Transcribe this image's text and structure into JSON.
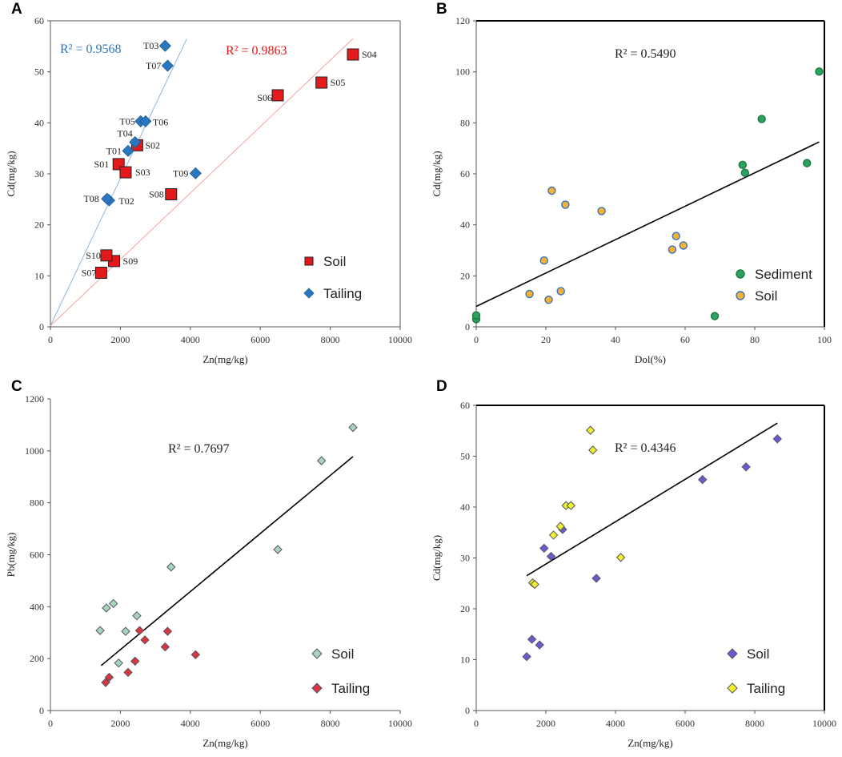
{
  "chart_data": [
    {
      "type": "scatter",
      "panel": "A",
      "xlabel": "Zn(mg/kg)",
      "ylabel": "Cd(mg/kg)",
      "xlim": [
        0,
        10000
      ],
      "ylim": [
        0,
        60
      ],
      "xticks": [
        0,
        2000,
        4000,
        6000,
        8000,
        10000
      ],
      "yticks": [
        0,
        10,
        20,
        30,
        40,
        50,
        60
      ],
      "series": [
        {
          "name": "Soil",
          "marker": "square",
          "color": "#e3191c",
          "points": [
            {
              "label": "S01",
              "x": 1950,
              "y": 31.9
            },
            {
              "label": "S02",
              "x": 2480,
              "y": 35.6
            },
            {
              "label": "S03",
              "x": 2150,
              "y": 30.3
            },
            {
              "label": "S04",
              "x": 8650,
              "y": 53.4
            },
            {
              "label": "S05",
              "x": 7750,
              "y": 47.9
            },
            {
              "label": "S06",
              "x": 6500,
              "y": 45.4
            },
            {
              "label": "S07",
              "x": 1450,
              "y": 10.6
            },
            {
              "label": "S08",
              "x": 3450,
              "y": 26.0
            },
            {
              "label": "S09",
              "x": 1820,
              "y": 12.9
            },
            {
              "label": "S10",
              "x": 1600,
              "y": 14.0
            }
          ]
        },
        {
          "name": "Tailing",
          "marker": "diamond",
          "color": "#2a77bf",
          "points": [
            {
              "label": "T01",
              "x": 2220,
              "y": 34.5
            },
            {
              "label": "T02",
              "x": 1680,
              "y": 24.8
            },
            {
              "label": "T03",
              "x": 3280,
              "y": 55.1
            },
            {
              "label": "T04",
              "x": 2420,
              "y": 36.2
            },
            {
              "label": "T05",
              "x": 2580,
              "y": 40.3
            },
            {
              "label": "T06",
              "x": 2720,
              "y": 40.3
            },
            {
              "label": "T07",
              "x": 3350,
              "y": 51.2
            },
            {
              "label": "T08",
              "x": 1620,
              "y": 25.1
            },
            {
              "label": "T09",
              "x": 4150,
              "y": 30.1
            }
          ]
        }
      ],
      "trendlines": [
        {
          "name": "Soil fit",
          "r2": "R² = 0.9863",
          "color": "#f4a3a3",
          "x0": 0,
          "y0": 0.2,
          "x1": 8650,
          "y1": 56.5
        },
        {
          "name": "Tailing fit",
          "r2": "R² = 0.9568",
          "color": "#8fb3e0",
          "x0": 0,
          "y0": 0.2,
          "x1": 3900,
          "y1": 56.5
        }
      ]
    },
    {
      "type": "scatter",
      "panel": "B",
      "xlabel": "Dol(%)",
      "ylabel": "Cd(mg/kg)",
      "xlim": [
        0,
        100
      ],
      "ylim": [
        0,
        120
      ],
      "xticks": [
        0,
        20,
        40,
        60,
        80,
        100
      ],
      "yticks": [
        0,
        20,
        40,
        60,
        80,
        100,
        120
      ],
      "r2": "R² = 0.5490",
      "trendline": {
        "x0": 0,
        "y0": 8,
        "x1": 98.5,
        "y1": 72.5
      },
      "series": [
        {
          "name": "Sediment",
          "marker": "circle",
          "color": "#2ca25f",
          "points": [
            {
              "x": 0,
              "y": 3
            },
            {
              "x": 0,
              "y": 4.5
            },
            {
              "x": 68.5,
              "y": 4.2
            },
            {
              "x": 76.5,
              "y": 63.5
            },
            {
              "x": 77.2,
              "y": 60.4
            },
            {
              "x": 82,
              "y": 81.5
            },
            {
              "x": 95,
              "y": 64.2
            },
            {
              "x": 98.5,
              "y": 100.1
            }
          ]
        },
        {
          "name": "Soil",
          "marker": "circle",
          "color": "#f5b335",
          "points": [
            {
              "x": 15.3,
              "y": 12.9
            },
            {
              "x": 19.5,
              "y": 26.0
            },
            {
              "x": 20.8,
              "y": 10.6
            },
            {
              "x": 21.7,
              "y": 53.4
            },
            {
              "x": 24.3,
              "y": 14.0
            },
            {
              "x": 25.6,
              "y": 47.9
            },
            {
              "x": 36,
              "y": 45.4
            },
            {
              "x": 56.3,
              "y": 30.3
            },
            {
              "x": 57.4,
              "y": 35.6
            },
            {
              "x": 59.5,
              "y": 31.9
            }
          ]
        }
      ]
    },
    {
      "type": "scatter",
      "panel": "C",
      "xlabel": "Zn(mg/kg)",
      "ylabel": "Pb(mg/kg)",
      "xlim": [
        0,
        10000
      ],
      "ylim": [
        0,
        1200
      ],
      "xticks": [
        0,
        2000,
        4000,
        6000,
        8000,
        10000
      ],
      "yticks": [
        0,
        200,
        400,
        600,
        800,
        1000,
        1200
      ],
      "r2": "R² = 0.7697",
      "trendline": {
        "x0": 1450,
        "y0": 173,
        "x1": 8650,
        "y1": 978
      },
      "series": [
        {
          "name": "Soil",
          "marker": "diamond",
          "color": "#a8d5ba",
          "points": [
            {
              "x": 1420,
              "y": 308
            },
            {
              "x": 1600,
              "y": 395
            },
            {
              "x": 1800,
              "y": 412
            },
            {
              "x": 1950,
              "y": 183
            },
            {
              "x": 2150,
              "y": 305
            },
            {
              "x": 2470,
              "y": 365
            },
            {
              "x": 3450,
              "y": 553
            },
            {
              "x": 6500,
              "y": 620
            },
            {
              "x": 7750,
              "y": 962
            },
            {
              "x": 8650,
              "y": 1090
            }
          ]
        },
        {
          "name": "Tailing",
          "marker": "diamond",
          "color": "#d9363e",
          "points": [
            {
              "x": 1580,
              "y": 108
            },
            {
              "x": 1680,
              "y": 128
            },
            {
              "x": 2220,
              "y": 147
            },
            {
              "x": 2420,
              "y": 190
            },
            {
              "x": 2550,
              "y": 308
            },
            {
              "x": 2700,
              "y": 272
            },
            {
              "x": 3280,
              "y": 245
            },
            {
              "x": 3350,
              "y": 305
            },
            {
              "x": 4150,
              "y": 215
            }
          ]
        }
      ]
    },
    {
      "type": "scatter",
      "panel": "D",
      "xlabel": "Zn(mg/kg)",
      "ylabel": "Cd(mg/kg)",
      "xlim": [
        0,
        10000
      ],
      "ylim": [
        0,
        60
      ],
      "xticks": [
        0,
        2000,
        4000,
        6000,
        8000,
        10000
      ],
      "yticks": [
        0,
        10,
        20,
        30,
        40,
        50,
        60
      ],
      "r2": "R² = 0.4346",
      "trendline": {
        "x0": 1450,
        "y0": 26.5,
        "x1": 8650,
        "y1": 56.5
      },
      "series": [
        {
          "name": "Soil",
          "marker": "diamond",
          "color": "#6a5acd",
          "points": [
            {
              "x": 1450,
              "y": 10.6
            },
            {
              "x": 1600,
              "y": 14.0
            },
            {
              "x": 1820,
              "y": 12.9
            },
            {
              "x": 1950,
              "y": 31.9
            },
            {
              "x": 2150,
              "y": 30.3
            },
            {
              "x": 2480,
              "y": 35.6
            },
            {
              "x": 3450,
              "y": 26.0
            },
            {
              "x": 6500,
              "y": 45.4
            },
            {
              "x": 7750,
              "y": 47.9
            },
            {
              "x": 8650,
              "y": 53.4
            }
          ]
        },
        {
          "name": "Tailing",
          "marker": "diamond",
          "color": "#f2f02c",
          "points": [
            {
              "x": 1620,
              "y": 25.1
            },
            {
              "x": 1680,
              "y": 24.8
            },
            {
              "x": 2220,
              "y": 34.5
            },
            {
              "x": 2420,
              "y": 36.2
            },
            {
              "x": 2580,
              "y": 40.3
            },
            {
              "x": 2720,
              "y": 40.3
            },
            {
              "x": 3280,
              "y": 55.1
            },
            {
              "x": 3350,
              "y": 51.2
            },
            {
              "x": 4150,
              "y": 30.1
            }
          ]
        }
      ]
    }
  ]
}
